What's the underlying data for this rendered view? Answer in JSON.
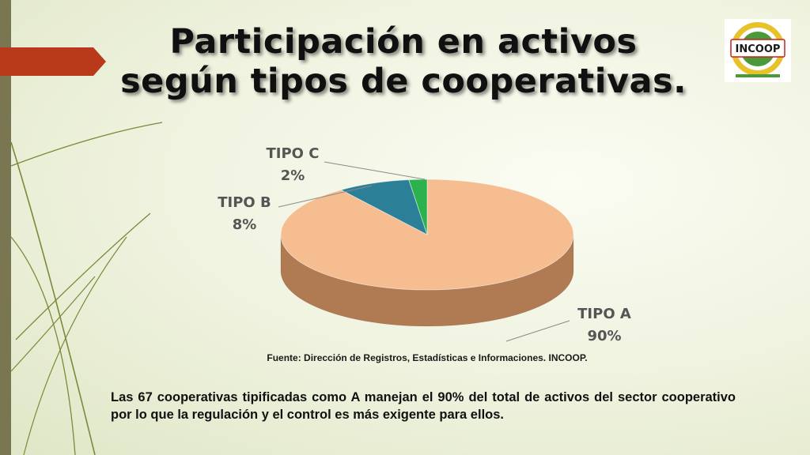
{
  "title": {
    "line1": "Participación en activos",
    "line2": "según tipos de cooperativas."
  },
  "logo": {
    "text": "INCOOP",
    "colors": {
      "ring": "#e8c22a",
      "inner": "#4a9a3a",
      "red": "#c8201c"
    }
  },
  "colors": {
    "left_bar": "#7b7652",
    "arrow": "#b83a1a",
    "decor_lines": "#7a8a3a"
  },
  "chart_data": {
    "type": "pie",
    "title": "",
    "slices": [
      {
        "label": "TIPO A",
        "value": 90,
        "percent_label": "90%",
        "color": "#f5bd90",
        "side_color": "#b07a52"
      },
      {
        "label": "TIPO B",
        "value": 8,
        "percent_label": "8%",
        "color": "#2b7f96",
        "side_color": "#1c5566"
      },
      {
        "label": "TIPO C",
        "value": 2,
        "percent_label": "2%",
        "color": "#2bb24c",
        "side_color": "#1b7a32"
      }
    ],
    "legend": "none",
    "data_labels": "outside with leader lines"
  },
  "source": "Fuente: Dirección de Registros, Estadísticas e Informaciones. INCOOP.",
  "body_text": "Las 67 cooperativas tipificadas como A manejan el 90% del total de activos del sector cooperativo por lo que la regulación y el control es más exigente para ellos."
}
